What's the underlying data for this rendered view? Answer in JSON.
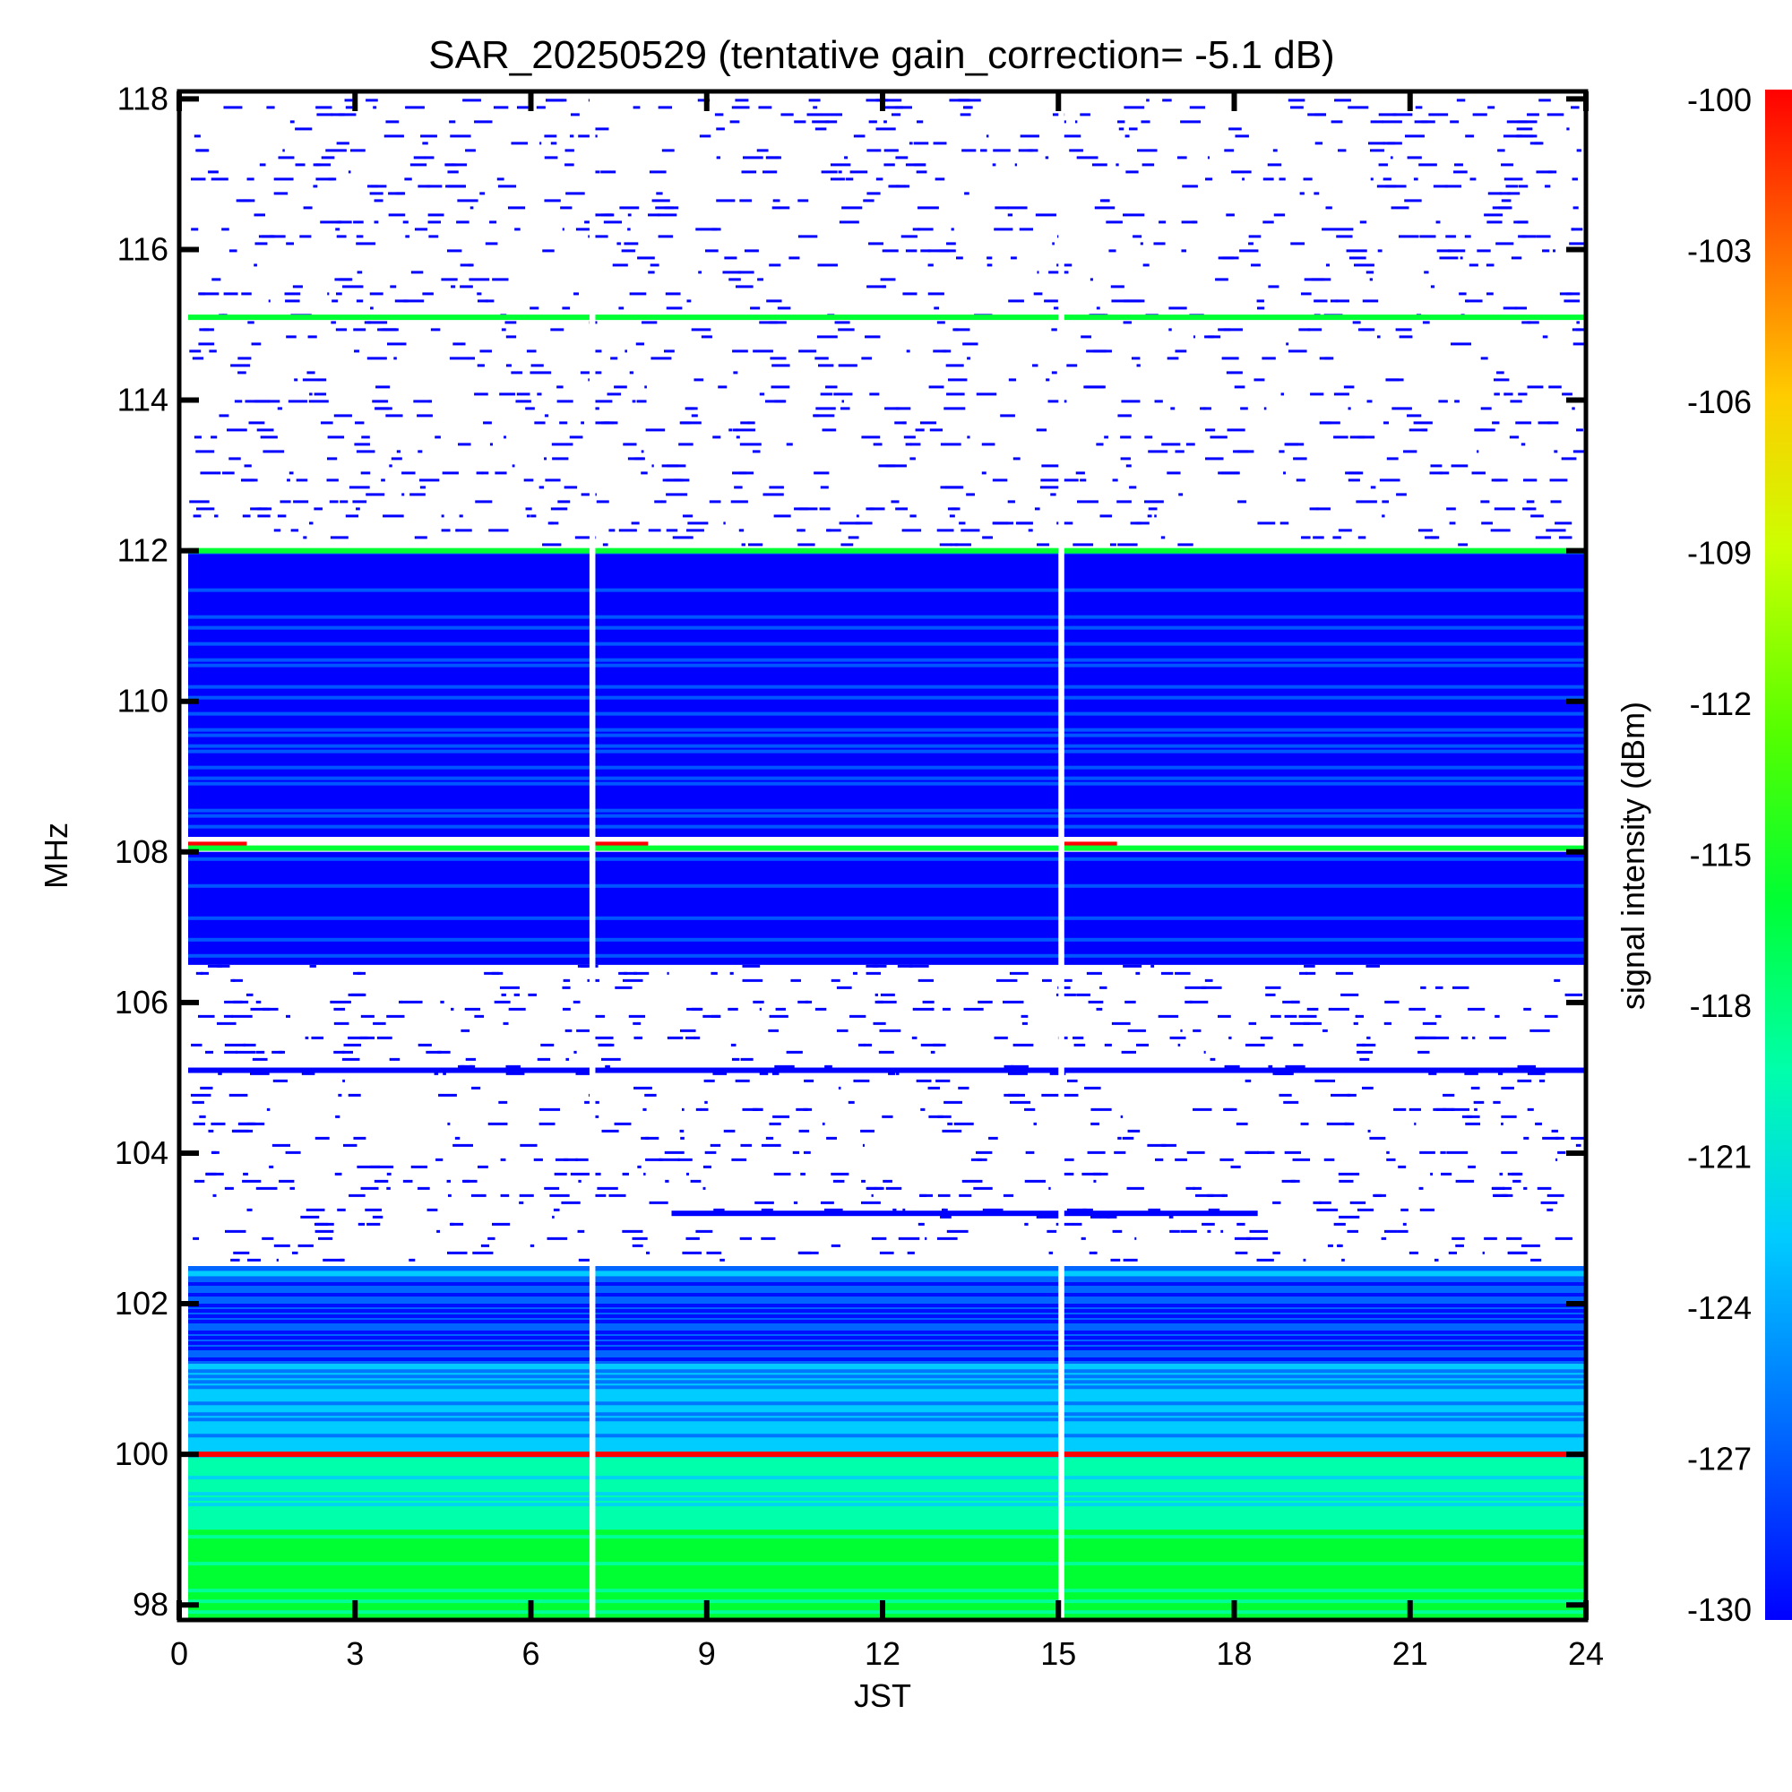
{
  "chart_data": {
    "type": "heatmap",
    "title": "SAR_20250529 (tentative gain_correction= -5.1 dB)",
    "xlabel": "JST",
    "ylabel": "MHz",
    "colorbar_label": "signal intensity (dBm)",
    "xlim": [
      0,
      24
    ],
    "ylim": [
      97.8,
      118.1
    ],
    "clim": [
      -130,
      -100
    ],
    "x_ticks": [
      "0",
      "3",
      "6",
      "9",
      "12",
      "15",
      "18",
      "21",
      "24"
    ],
    "y_ticks": [
      "98",
      "100",
      "102",
      "104",
      "106",
      "108",
      "110",
      "112",
      "114",
      "116",
      "118"
    ],
    "colorbar_ticks": [
      "-100",
      "-103",
      "-106",
      "-109",
      "-112",
      "-115",
      "-118",
      "-121",
      "-124",
      "-127",
      "-130"
    ],
    "colormap": [
      "#0000ff",
      "#0066ff",
      "#00ccff",
      "#00ffaa",
      "#00ff33",
      "#55ff00",
      "#ccff00",
      "#ffcc00",
      "#ff6600",
      "#ff0000"
    ],
    "data_gaps_jst": [
      {
        "start": 7.0,
        "end": 7.1
      },
      {
        "start": 15.0,
        "end": 15.1
      }
    ],
    "bands": [
      {
        "f_min": 97.8,
        "f_max": 99.0,
        "level_dbm": -117.5,
        "fill": "continuous"
      },
      {
        "f_min": 99.0,
        "f_max": 100.0,
        "level_dbm": -120.5,
        "fill": "continuous"
      },
      {
        "f_min": 100.0,
        "f_max": 101.2,
        "level_dbm": -124.0,
        "fill": "continuous"
      },
      {
        "f_min": 101.2,
        "f_max": 102.5,
        "level_dbm": -127.0,
        "fill": "continuous"
      },
      {
        "f_min": 102.5,
        "f_max": 106.5,
        "level_dbm": -129.5,
        "fill": "sparse"
      },
      {
        "f_min": 106.5,
        "f_max": 108.0,
        "level_dbm": -128.5,
        "fill": "continuous"
      },
      {
        "f_min": 108.2,
        "f_max": 112.0,
        "level_dbm": -127.5,
        "fill": "continuous"
      },
      {
        "f_min": 112.0,
        "f_max": 118.0,
        "level_dbm": -129.5,
        "fill": "sparse"
      }
    ],
    "lines": [
      {
        "freq": 100.0,
        "level_dbm": -100,
        "t_start": 0,
        "t_end": 24
      },
      {
        "freq": 108.1,
        "level_dbm": -100,
        "t_start": 0,
        "t_end": 1
      },
      {
        "freq": 108.1,
        "level_dbm": -100,
        "t_start": 7.1,
        "t_end": 8
      },
      {
        "freq": 108.1,
        "level_dbm": -100,
        "t_start": 15.1,
        "t_end": 16
      },
      {
        "freq": 108.05,
        "level_dbm": -117,
        "t_start": 0,
        "t_end": 24
      },
      {
        "freq": 112.0,
        "level_dbm": -117,
        "t_start": 0,
        "t_end": 24
      },
      {
        "freq": 115.1,
        "level_dbm": -118,
        "t_start": 0,
        "t_end": 24
      },
      {
        "freq": 102.4,
        "level_dbm": -124,
        "t_start": 0,
        "t_end": 24
      },
      {
        "freq": 105.1,
        "level_dbm": -128,
        "t_start": 0,
        "t_end": 24
      },
      {
        "freq": 103.2,
        "level_dbm": -130,
        "t_start": 8.4,
        "t_end": 18.4
      }
    ]
  }
}
